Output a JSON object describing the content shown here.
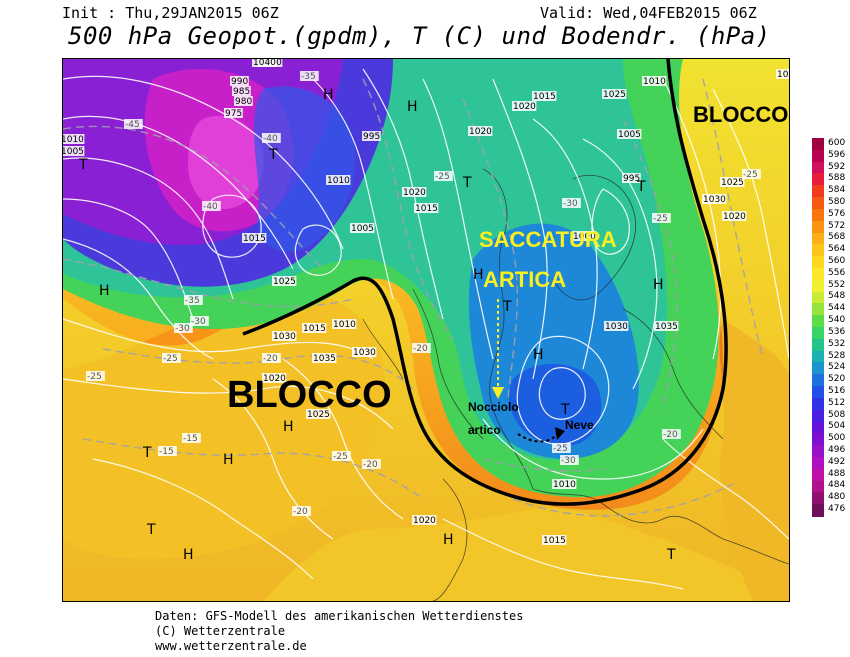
{
  "header": {
    "init": "Init : Thu,29JAN2015 06Z",
    "valid": "Valid: Wed,04FEB2015 06Z",
    "title": "500 hPa Geopot.(gpdm), T (C) und Bodendr. (hPa)"
  },
  "annotations": {
    "blocco_east": "BLOCCO",
    "blocco_west": "BLOCCO",
    "saccatura_line1": "SACCATURA",
    "saccatura_line2": "ARTICA",
    "nocciolo_line1": "Nocciolo",
    "nocciolo_line2": "artico",
    "neve": "Neve"
  },
  "pressure_labels": [
    "990",
    "985",
    "980",
    "975",
    "1000",
    "1005",
    "1010",
    "1015",
    "1020",
    "1025",
    "1030",
    "1035",
    "1040",
    "995",
    "1010",
    "1015",
    "1020",
    "1030",
    "1035",
    "1040",
    "1025",
    "1030",
    "1020",
    "1010",
    "1015",
    "1005",
    "995",
    "1000",
    "1005",
    "1010",
    "1015",
    "1020",
    "1025",
    "1030",
    "1020",
    "1025",
    "1020",
    "1015",
    "1010"
  ],
  "temperature_labels": [
    "-45",
    "-40",
    "-35",
    "-30",
    "-25",
    "-20",
    "-15",
    "-40",
    "-35",
    "-30",
    "-25",
    "-20",
    "-25",
    "-25",
    "-30",
    "-25",
    "-20",
    "-15",
    "-20",
    "-25",
    "-30",
    "-20",
    "-25"
  ],
  "pressure_centers": [
    "H",
    "T",
    "H",
    "T",
    "H",
    "T",
    "H",
    "T",
    "H",
    "T",
    "H",
    "T",
    "H",
    "T",
    "H",
    "T",
    "H",
    "T",
    "H"
  ],
  "legend": {
    "ticks": [
      "600",
      "596",
      "592",
      "588",
      "584",
      "580",
      "576",
      "572",
      "568",
      "564",
      "560",
      "556",
      "552",
      "548",
      "544",
      "540",
      "536",
      "532",
      "528",
      "524",
      "520",
      "516",
      "512",
      "508",
      "504",
      "500",
      "496",
      "492",
      "488",
      "484",
      "480",
      "476"
    ],
    "colors": [
      "#a00040",
      "#b8004e",
      "#d0105c",
      "#e81c3c",
      "#f03c1c",
      "#f45a12",
      "#f8760c",
      "#fa9212",
      "#fcae18",
      "#fdc41a",
      "#fed820",
      "#fce828",
      "#f0f030",
      "#c8ec34",
      "#96e43c",
      "#5cdc48",
      "#38d468",
      "#24c48c",
      "#1cb0b0",
      "#1c94d0",
      "#1c70e0",
      "#2050e8",
      "#3034e8",
      "#4820e0",
      "#6414d8",
      "#8010d0",
      "#9810c8",
      "#b010c0",
      "#c010a8",
      "#b0108c",
      "#901070",
      "#70105a"
    ]
  },
  "footer": {
    "line1": "Daten: GFS-Modell des amerikanischen Wetterdienstes",
    "line2": "(C) Wetterzentrale",
    "line3": "www.wetterzentrale.de"
  }
}
